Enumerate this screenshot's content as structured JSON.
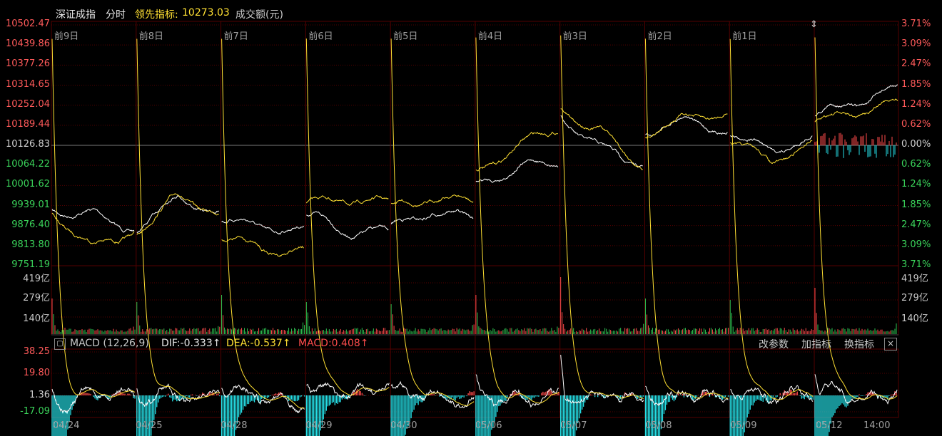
{
  "header": {
    "index_name": "深证成指",
    "mode": "分时",
    "lead_label": "领先指标:",
    "lead_value": "10273.03",
    "volume_label": "成交额(元)"
  },
  "days_top": [
    "前9日",
    "前8日",
    "前7日",
    "前6日",
    "前5日",
    "前4日",
    "前3日",
    "前2日",
    "前1日"
  ],
  "dates_bottom": [
    "04/24",
    "04/25",
    "04/28",
    "04/29",
    "04/30",
    "05/06",
    "05/07",
    "05/08",
    "05/09",
    "05/12",
    "14:00"
  ],
  "price_axis": {
    "left": [
      "10502.47",
      "10439.86",
      "10377.26",
      "10314.65",
      "10252.04",
      "10189.44",
      "10126.83",
      "10064.22",
      "10001.62",
      "9939.01",
      "9876.40",
      "9813.80",
      "9751.19"
    ],
    "right": [
      "3.71%",
      "3.09%",
      "2.47%",
      "1.85%",
      "1.24%",
      "0.62%",
      "0.00%",
      "0.62%",
      "1.24%",
      "1.85%",
      "2.47%",
      "3.09%",
      "3.71%"
    ]
  },
  "volume_axis": {
    "left": [
      "419亿",
      "279亿",
      "140亿"
    ],
    "right": [
      "419亿",
      "279亿",
      "140亿"
    ]
  },
  "macd": {
    "name": "MACD (12,26,9)",
    "dif": "DIF:-0.333↑",
    "dea": "DEA:-0.537↑",
    "macd": "MACD:0.408↑",
    "axis": [
      "38.25",
      "19.80",
      "1.36",
      "-17.09"
    ],
    "buttons": [
      "改参数",
      "加指标",
      "换指标"
    ],
    "close": "×"
  },
  "colors": {
    "up": "#ff4c4c",
    "down": "#2ec452",
    "white_line": "#ffffff",
    "yellow_line": "#ffe033",
    "cyan": "#26e1e8",
    "grid": "#3c0000"
  },
  "chart_data": {
    "type": "line",
    "x": [
      "04/24",
      "04/25",
      "04/28",
      "04/29",
      "04/30",
      "05/06",
      "05/07",
      "05/08",
      "05/09",
      "05/12"
    ],
    "ylim": [
      9751.19,
      10502.47
    ],
    "series": []
  }
}
